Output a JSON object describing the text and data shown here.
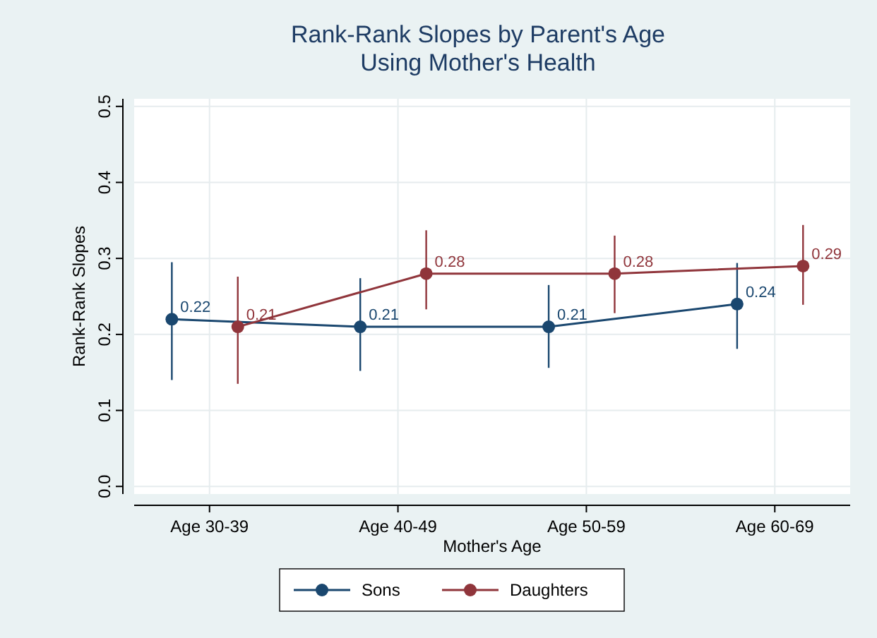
{
  "chart_data": {
    "type": "line",
    "title": "Rank-Rank Slopes by Parent's Age",
    "subtitle": "Using Mother's Health",
    "xlabel": "Mother's Age",
    "ylabel": "Rank-Rank Slopes",
    "categories": [
      "Age 30-39",
      "Age 40-49",
      "Age 50-59",
      "Age 60-69"
    ],
    "series": [
      {
        "name": "Sons",
        "color": "#1a476f",
        "values": [
          0.22,
          0.21,
          0.21,
          0.24
        ],
        "errors": [
          [
            0.14,
            0.295
          ],
          [
            0.152,
            0.274
          ],
          [
            0.156,
            0.265
          ],
          [
            0.181,
            0.294
          ]
        ]
      },
      {
        "name": "Daughters",
        "color": "#90353b",
        "values": [
          0.21,
          0.28,
          0.28,
          0.29
        ],
        "errors": [
          [
            0.135,
            0.276
          ],
          [
            0.233,
            0.337
          ],
          [
            0.228,
            0.33
          ],
          [
            0.239,
            0.344
          ]
        ]
      }
    ],
    "ylim": [
      -0.01,
      0.51
    ],
    "yticks": [
      {
        "value": 0,
        "label": "0.0"
      },
      {
        "value": 0.1,
        "label": "0.1"
      },
      {
        "value": 0.2,
        "label": "0.2"
      },
      {
        "value": 0.3,
        "label": "0.3"
      },
      {
        "value": 0.4,
        "label": "0.4"
      },
      {
        "value": 0.5,
        "label": "0.5"
      }
    ],
    "grid": true,
    "legend": "bottom",
    "marker": "circle",
    "line_style": "solid",
    "data_labels": true
  }
}
